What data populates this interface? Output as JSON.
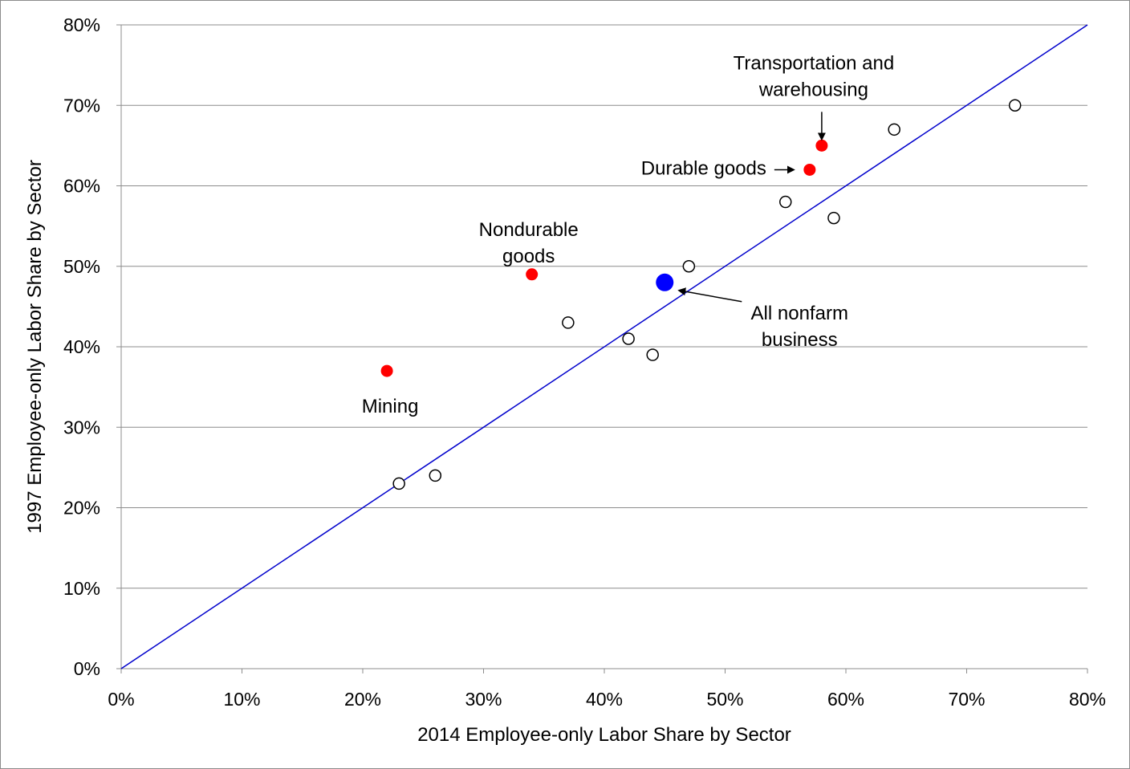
{
  "chart_data": {
    "type": "scatter",
    "title": "",
    "xlabel": "2014 Employee-only Labor Share by Sector",
    "ylabel": "1997 Employee-only Labor Share by Sector",
    "xlim": [
      0,
      80
    ],
    "ylim": [
      0,
      80
    ],
    "x_ticks": [
      "0%",
      "10%",
      "20%",
      "30%",
      "40%",
      "50%",
      "60%",
      "70%",
      "80%"
    ],
    "y_ticks": [
      "0%",
      "10%",
      "20%",
      "30%",
      "40%",
      "50%",
      "60%",
      "70%",
      "80%"
    ],
    "grid": "horizontal",
    "legend": "none",
    "reference_line": {
      "from": [
        0,
        0
      ],
      "to": [
        80,
        80
      ],
      "color": "#0000cc"
    },
    "colors": {
      "highlighted": "#ff0000",
      "aggregate": "#0000ff",
      "other": "#ffffff",
      "outline": "#000000"
    },
    "points": [
      {
        "x": 23,
        "y": 23,
        "kind": "other"
      },
      {
        "x": 26,
        "y": 24,
        "kind": "other"
      },
      {
        "x": 37,
        "y": 43,
        "kind": "other"
      },
      {
        "x": 42,
        "y": 41,
        "kind": "other"
      },
      {
        "x": 44,
        "y": 39,
        "kind": "other"
      },
      {
        "x": 47,
        "y": 50,
        "kind": "other"
      },
      {
        "x": 55,
        "y": 58,
        "kind": "other"
      },
      {
        "x": 59,
        "y": 56,
        "kind": "other"
      },
      {
        "x": 64,
        "y": 67,
        "kind": "other"
      },
      {
        "x": 74,
        "y": 70,
        "kind": "other"
      },
      {
        "x": 22,
        "y": 37,
        "kind": "highlighted"
      },
      {
        "x": 34,
        "y": 49,
        "kind": "highlighted"
      },
      {
        "x": 57,
        "y": 62,
        "kind": "highlighted"
      },
      {
        "x": 58,
        "y": 65,
        "kind": "highlighted"
      },
      {
        "x": 45,
        "y": 48,
        "kind": "aggregate"
      }
    ],
    "annotations": [
      {
        "lines": [
          "Mining"
        ],
        "point": [
          22,
          37
        ],
        "arrow": false
      },
      {
        "lines": [
          "Nondurable",
          "goods"
        ],
        "point": [
          34,
          49
        ],
        "arrow": false
      },
      {
        "lines": [
          "Durable goods"
        ],
        "point": [
          57,
          62
        ],
        "arrow": true
      },
      {
        "lines": [
          "Transportation and",
          "warehousing"
        ],
        "point": [
          58,
          65
        ],
        "arrow": true
      },
      {
        "lines": [
          "All nonfarm",
          "business"
        ],
        "point": [
          45,
          48
        ],
        "arrow": true
      }
    ]
  }
}
